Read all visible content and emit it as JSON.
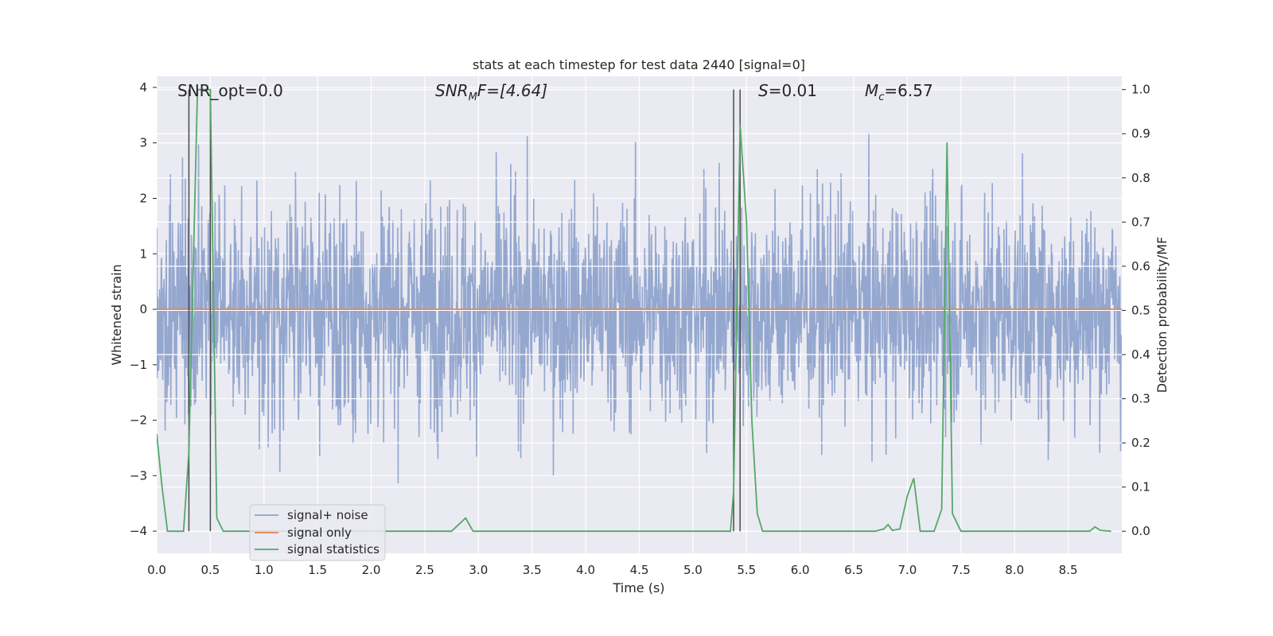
{
  "chart_data": {
    "type": "line",
    "title": "stats at each timestep for test data 2440 [signal=0]",
    "xlabel": "Time (s)",
    "ylabel_left": "Whitened strain",
    "ylabel_right": "Detection probability/MF",
    "xlim": [
      0.0,
      9.0
    ],
    "ylim_left": [
      -4.4,
      4.2
    ],
    "ylim_right": [
      -0.05,
      1.03
    ],
    "x_ticks": [
      "0.0",
      "0.5",
      "1.0",
      "1.5",
      "2.0",
      "2.5",
      "3.0",
      "3.5",
      "4.0",
      "4.5",
      "5.0",
      "5.5",
      "6.0",
      "6.5",
      "7.0",
      "7.5",
      "8.0",
      "8.5"
    ],
    "y_left_ticks": [
      "4",
      "3",
      "2",
      "1",
      "0",
      "−1",
      "−2",
      "−3",
      "−4"
    ],
    "y_right_ticks": [
      "1.0",
      "0.9",
      "0.8",
      "0.7",
      "0.6",
      "0.5",
      "0.4",
      "0.3",
      "0.2",
      "0.1",
      "0.0"
    ],
    "grid": true,
    "legend": {
      "placement": "lower-left",
      "entries": [
        "signal+ noise",
        "signal only",
        "signal statistics"
      ]
    },
    "colors": {
      "noise": "#8fa3cc",
      "signal": "#dd8452",
      "stats": "#55a868",
      "markers": "#4a4a4a",
      "background": "#eaeaf2"
    },
    "annotations": {
      "snr_opt": "SNR_opt=0.0",
      "snr_mf_prefix": "SNR",
      "snr_mf_sub": "M",
      "snr_mf_rest": "F=[4.64]",
      "s_prefix": "S",
      "s_rest": "=0.01",
      "mc_prefix": "M",
      "mc_sub": "c",
      "mc_rest": "=6.57"
    },
    "vertical_markers_s": [
      0.3,
      0.5,
      5.38,
      5.44
    ],
    "series": [
      {
        "name": "signal+ noise",
        "axis": "left",
        "style": "dense noise, approx. ±1.7 body with spikes to about ±3.5",
        "envelope_1sigma": 1.0
      },
      {
        "name": "signal only",
        "axis": "left",
        "x": [
          0.0,
          9.0
        ],
        "y": [
          0.0,
          0.0
        ]
      },
      {
        "name": "signal statistics",
        "axis": "right",
        "x": [
          0.0,
          0.05,
          0.1,
          0.2,
          0.25,
          0.3,
          0.38,
          0.44,
          0.5,
          0.56,
          0.62,
          2.75,
          2.88,
          2.95,
          3.5,
          4.0,
          5.35,
          5.38,
          5.44,
          5.5,
          5.55,
          5.6,
          5.65,
          6.7,
          6.78,
          6.82,
          6.86,
          6.93,
          7.0,
          7.06,
          7.12,
          7.25,
          7.32,
          7.37,
          7.42,
          7.5,
          8.7,
          8.75,
          8.8,
          8.9
        ],
        "y": [
          0.22,
          0.1,
          0.0,
          0.0,
          0.0,
          0.18,
          1.0,
          1.0,
          1.0,
          0.03,
          0.0,
          0.0,
          0.03,
          0.0,
          0.0,
          0.0,
          0.0,
          0.09,
          0.92,
          0.7,
          0.25,
          0.04,
          0.0,
          0.0,
          0.005,
          0.015,
          0.002,
          0.005,
          0.08,
          0.12,
          0.0,
          0.0,
          0.05,
          0.88,
          0.04,
          0.0,
          0.0,
          0.01,
          0.002,
          0.0
        ]
      }
    ]
  }
}
